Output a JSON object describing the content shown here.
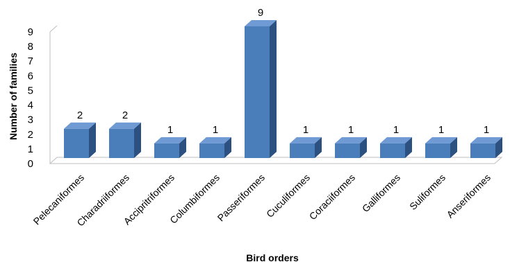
{
  "chart_data": {
    "type": "bar",
    "title": "",
    "xlabel": "Bird orders",
    "ylabel": "Number of families",
    "categories": [
      "Pelecaniformes",
      "Charadriiformes",
      "Accipritriformes",
      "Columbiformes",
      "Passeriformes",
      "Cuculiformes",
      "Coraciiformes",
      "Galliformes",
      "Suliformes",
      "Anseriformes"
    ],
    "values": [
      2,
      2,
      1,
      1,
      9,
      1,
      1,
      1,
      1,
      1
    ],
    "ylim": [
      0,
      9
    ],
    "yticks": [
      0,
      1,
      2,
      3,
      4,
      5,
      6,
      7,
      8,
      9
    ],
    "data_labels": [
      "2",
      "2",
      "1",
      "1",
      "9",
      "1",
      "1",
      "1",
      "1",
      "1"
    ],
    "style": "3d-column",
    "grid": false,
    "legend": "none",
    "colors": {
      "front": "#4a7ebb",
      "side": "#2c5180",
      "top": "#6f9ad4",
      "floor": "#bfbfbf"
    }
  }
}
